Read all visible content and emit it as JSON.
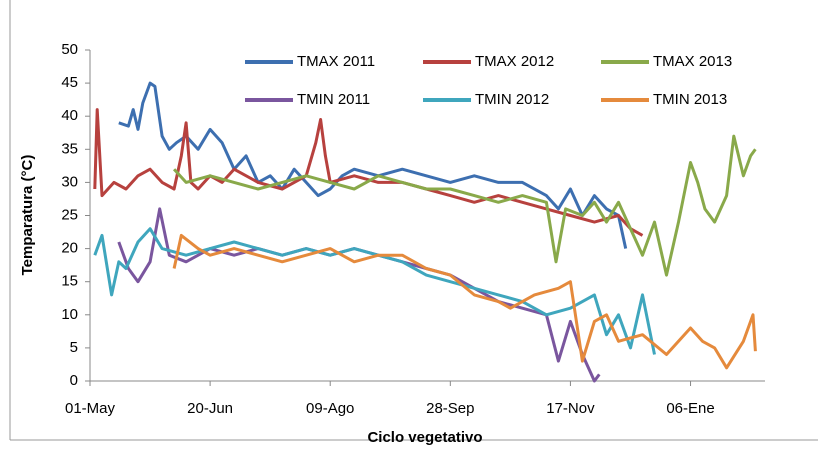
{
  "chart_data": {
    "type": "line",
    "x_label": "Ciclo vegetativo",
    "y_label": "Temparatura (°C)",
    "xlim": [
      0,
      281
    ],
    "ylim": [
      0,
      50
    ],
    "xticks": [
      {
        "value": 0,
        "label": "01-May"
      },
      {
        "value": 50,
        "label": "20-Jun"
      },
      {
        "value": 100,
        "label": "09-Ago"
      },
      {
        "value": 150,
        "label": "28-Sep"
      },
      {
        "value": 200,
        "label": "17-Nov"
      },
      {
        "value": 250,
        "label": "06-Ene"
      }
    ],
    "yticks": [
      0,
      5,
      10,
      15,
      20,
      25,
      30,
      35,
      40,
      45,
      50
    ],
    "series": [
      {
        "name": "TMAX 2011",
        "color": "#3d6fb0",
        "x": [
          12,
          16,
          18,
          20,
          22,
          25,
          27,
          30,
          33,
          36,
          40,
          45,
          50,
          55,
          60,
          65,
          70,
          75,
          80,
          85,
          90,
          95,
          100,
          105,
          110,
          120,
          130,
          140,
          150,
          160,
          170,
          180,
          190,
          195,
          200,
          205,
          210,
          215,
          220,
          223
        ],
        "values": [
          39,
          38.5,
          41,
          38,
          42,
          45,
          44.5,
          37,
          35,
          36,
          37,
          35,
          38,
          36,
          32,
          34,
          30,
          31,
          29,
          32,
          30,
          28,
          29,
          31,
          32,
          31,
          32,
          31,
          30,
          31,
          30,
          30,
          28,
          26,
          29,
          25,
          28,
          26,
          25,
          20
        ]
      },
      {
        "name": "TMAX 2012",
        "color": "#b7413e",
        "x": [
          2,
          3,
          5,
          10,
          15,
          20,
          25,
          30,
          35,
          38,
          40,
          42,
          45,
          50,
          55,
          60,
          70,
          80,
          90,
          94,
          96,
          98,
          100,
          110,
          120,
          130,
          140,
          150,
          160,
          170,
          180,
          190,
          200,
          210,
          220,
          225,
          230
        ],
        "values": [
          29,
          41,
          28,
          30,
          29,
          31,
          32,
          30,
          29,
          34,
          39,
          30,
          29,
          31,
          30,
          32,
          30,
          29,
          31,
          36,
          39.5,
          34,
          30,
          31,
          30,
          30,
          29,
          28,
          27,
          28,
          27,
          26,
          25,
          24,
          25,
          23,
          22
        ]
      },
      {
        "name": "TMAX 2013",
        "color": "#89a94a",
        "x": [
          35,
          40,
          50,
          60,
          70,
          80,
          90,
          100,
          110,
          120,
          130,
          140,
          150,
          160,
          170,
          180,
          190,
          194,
          198,
          205,
          210,
          215,
          220,
          225,
          230,
          235,
          240,
          245,
          250,
          253,
          256,
          260,
          265,
          268,
          272,
          275,
          277
        ],
        "values": [
          32,
          30,
          31,
          30,
          29,
          30,
          31,
          30,
          29,
          31,
          30,
          29,
          29,
          28,
          27,
          28,
          27,
          18,
          26,
          25,
          27,
          24,
          27,
          23,
          19,
          24,
          16,
          24,
          33,
          30,
          26,
          24,
          28,
          37,
          31,
          34,
          35
        ]
      },
      {
        "name": "TMIN 2011",
        "color": "#7a569e",
        "x": [
          12,
          16,
          20,
          25,
          29,
          33,
          40,
          50,
          60,
          70,
          80,
          90,
          100,
          110,
          120,
          130,
          140,
          150,
          160,
          170,
          180,
          190,
          195,
          200,
          205,
          210,
          212
        ],
        "values": [
          21,
          17,
          15,
          18,
          26,
          19,
          18,
          20,
          19,
          20,
          19,
          20,
          19,
          20,
          19,
          18,
          17,
          16,
          14,
          12,
          11,
          10,
          3,
          9,
          4,
          0,
          1
        ]
      },
      {
        "name": "TMIN 2012",
        "color": "#3fa6bd",
        "x": [
          2,
          5,
          9,
          12,
          15,
          20,
          25,
          30,
          40,
          50,
          60,
          70,
          80,
          90,
          100,
          110,
          120,
          130,
          140,
          150,
          160,
          170,
          180,
          190,
          200,
          210,
          215,
          220,
          225,
          230,
          235
        ],
        "values": [
          19,
          22,
          13,
          18,
          17,
          21,
          23,
          20,
          19,
          20,
          21,
          20,
          19,
          20,
          19,
          20,
          19,
          18,
          16,
          15,
          14,
          13,
          12,
          10,
          11,
          13,
          7,
          10,
          5,
          13,
          4
        ]
      },
      {
        "name": "TMIN 2013",
        "color": "#e58a3c",
        "x": [
          35,
          38,
          45,
          50,
          60,
          70,
          80,
          90,
          100,
          110,
          120,
          130,
          140,
          150,
          160,
          170,
          175,
          185,
          195,
          200,
          205,
          210,
          215,
          220,
          230,
          240,
          250,
          255,
          260,
          265,
          272,
          276,
          277
        ],
        "values": [
          17,
          22,
          20,
          19,
          20,
          19,
          18,
          19,
          20,
          18,
          19,
          19,
          17,
          16,
          13,
          12,
          11,
          13,
          14,
          15,
          3,
          9,
          10,
          6,
          7,
          4,
          8,
          6,
          5,
          2,
          6,
          10,
          4.5
        ]
      }
    ]
  }
}
